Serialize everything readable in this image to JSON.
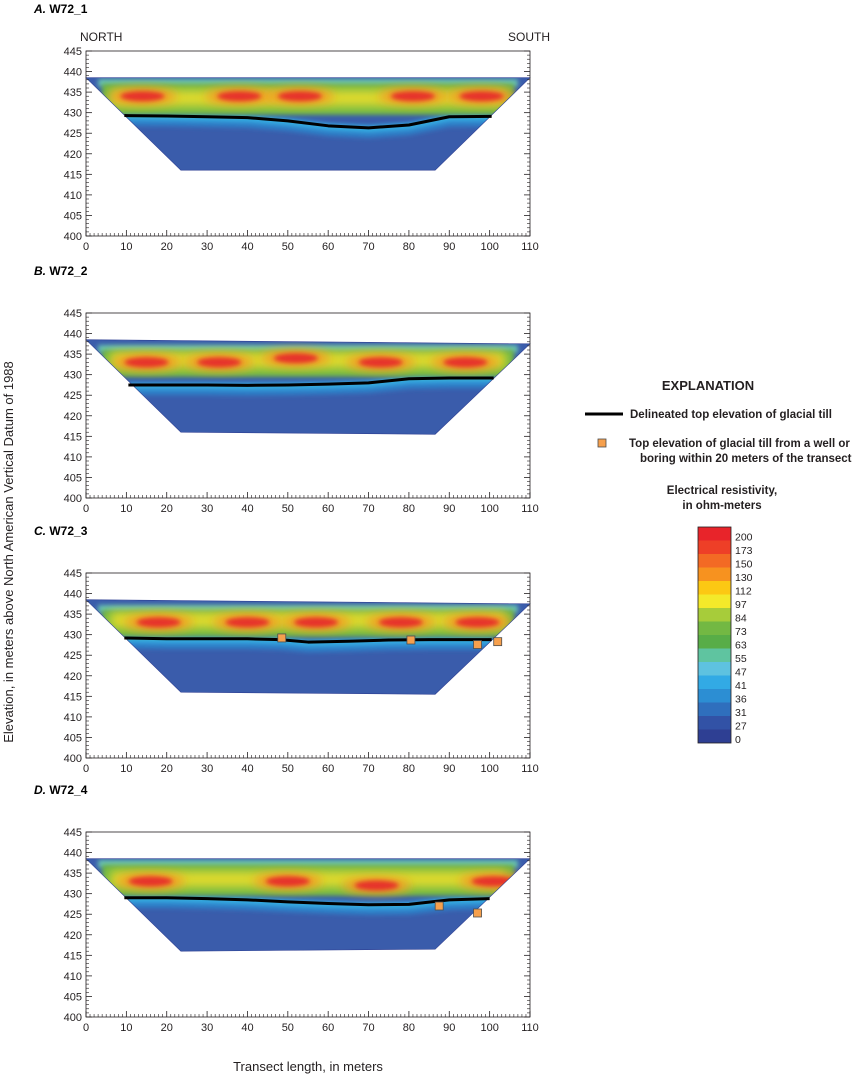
{
  "figure": {
    "x_axis_title": "Transect length, in meters",
    "y_axis_title": "Elevation, in meters above North American Vertical Datum of 1988",
    "north_label": "NORTH",
    "south_label": "SOUTH"
  },
  "explanation": {
    "title": "EXPLANATION",
    "line_label": "Delineated top elevation of glacial till",
    "marker_label_1": "Top elevation of glacial till from a well or",
    "marker_label_2": "boring within 20 meters of the transect",
    "colorbar_title_1": "Electrical resistivity,",
    "colorbar_title_2": "in ohm-meters",
    "colorbar_labels": [
      "200",
      "173",
      "150",
      "130",
      "112",
      "97",
      "84",
      "73",
      "63",
      "55",
      "47",
      "41",
      "36",
      "31",
      "27",
      "0"
    ],
    "colorbar_colors": [
      "#e8242a",
      "#ee3f27",
      "#f36a24",
      "#f7921f",
      "#fcc813",
      "#f3e92a",
      "#a7cc3a",
      "#73b843",
      "#58ad47",
      "#5fc4a0",
      "#5ec2e0",
      "#32aae5",
      "#2c8ed3",
      "#2f6fbd",
      "#3252a6",
      "#2e3f93"
    ]
  },
  "colors": {
    "deep": "#3a5cab",
    "blue": "#2f7fc7",
    "cyan": "#34b3e6",
    "teal": "#69c4b2",
    "green": "#6db845",
    "yellow": "#f4e02a",
    "orange": "#f39a22",
    "red": "#e6312b",
    "till_line": "#000000",
    "marker": "#f6a04d",
    "marker_stroke": "#4d4d4d"
  },
  "chart_data": [
    {
      "type": "heatmap",
      "label_letter": "A.",
      "label_name": "W72_1",
      "show_directions": true,
      "xlim": [
        0,
        110
      ],
      "ylim": [
        400,
        445
      ],
      "x_ticks": [
        "0",
        "10",
        "20",
        "30",
        "40",
        "50",
        "60",
        "70",
        "80",
        "90",
        "100",
        "110"
      ],
      "y_ticks": [
        "445",
        "440",
        "435",
        "430",
        "425",
        "420",
        "415",
        "410",
        "405",
        "400"
      ],
      "surface_left": [
        0,
        438.5
      ],
      "surface_right": [
        110,
        438.5
      ],
      "profile_bottom": [
        [
          23.5,
          416
        ],
        [
          86.5,
          416
        ]
      ],
      "till_line": [
        [
          9.5,
          429.3
        ],
        [
          20,
          429.2
        ],
        [
          30,
          429.0
        ],
        [
          40,
          428.8
        ],
        [
          50,
          428.0
        ],
        [
          60,
          426.8
        ],
        [
          70,
          426.3
        ],
        [
          80,
          427.0
        ],
        [
          90,
          429.0
        ],
        [
          100.5,
          429.1
        ]
      ],
      "high_zones": [
        [
          14,
          434
        ],
        [
          38,
          434
        ],
        [
          53,
          434
        ],
        [
          81,
          434
        ],
        [
          98,
          434
        ]
      ],
      "wells": []
    },
    {
      "type": "heatmap",
      "label_letter": "B.",
      "label_name": "W72_2",
      "show_directions": false,
      "xlim": [
        0,
        110
      ],
      "ylim": [
        400,
        445
      ],
      "x_ticks": [
        "0",
        "10",
        "20",
        "30",
        "40",
        "50",
        "60",
        "70",
        "80",
        "90",
        "100",
        "110"
      ],
      "y_ticks": [
        "445",
        "440",
        "435",
        "430",
        "425",
        "420",
        "415",
        "410",
        "405",
        "400"
      ],
      "surface_left": [
        0,
        438.5
      ],
      "surface_right": [
        110,
        437.5
      ],
      "profile_bottom": [
        [
          23.5,
          416
        ],
        [
          86.5,
          415.5
        ]
      ],
      "till_line": [
        [
          10.5,
          427.5
        ],
        [
          20,
          427.5
        ],
        [
          30,
          427.5
        ],
        [
          40,
          427.4
        ],
        [
          50,
          427.5
        ],
        [
          60,
          427.7
        ],
        [
          70,
          428.0
        ],
        [
          80,
          429.0
        ],
        [
          90,
          429.2
        ],
        [
          101,
          429.2
        ]
      ],
      "high_zones": [
        [
          15,
          433
        ],
        [
          33,
          433
        ],
        [
          52,
          434
        ],
        [
          73,
          433
        ],
        [
          94,
          433
        ]
      ],
      "wells": []
    },
    {
      "type": "heatmap",
      "label_letter": "C.",
      "label_name": "W72_3",
      "show_directions": false,
      "xlim": [
        0,
        110
      ],
      "ylim": [
        400,
        445
      ],
      "x_ticks": [
        "0",
        "10",
        "20",
        "30",
        "40",
        "50",
        "60",
        "70",
        "80",
        "90",
        "100",
        "110"
      ],
      "y_ticks": [
        "445",
        "440",
        "435",
        "430",
        "425",
        "420",
        "415",
        "410",
        "405",
        "400"
      ],
      "surface_left": [
        0,
        438.5
      ],
      "surface_right": [
        110,
        437.5
      ],
      "profile_bottom": [
        [
          23.5,
          416
        ],
        [
          86.5,
          415.5
        ]
      ],
      "till_line": [
        [
          9.5,
          429.2
        ],
        [
          20,
          429.0
        ],
        [
          30,
          429.0
        ],
        [
          40,
          429.0
        ],
        [
          48,
          428.8
        ],
        [
          55,
          428.2
        ],
        [
          65,
          428.4
        ],
        [
          75,
          428.7
        ],
        [
          85,
          428.8
        ],
        [
          100.5,
          428.8
        ]
      ],
      "high_zones": [
        [
          18,
          433
        ],
        [
          40,
          433
        ],
        [
          57,
          433
        ],
        [
          78,
          433
        ],
        [
          97,
          433
        ]
      ],
      "wells": [
        [
          48.5,
          429.2
        ],
        [
          80.5,
          428.7
        ],
        [
          97,
          427.6
        ],
        [
          102,
          428.3
        ]
      ]
    },
    {
      "type": "heatmap",
      "label_letter": "D.",
      "label_name": "W72_4",
      "show_directions": false,
      "xlim": [
        0,
        110
      ],
      "ylim": [
        400,
        445
      ],
      "x_ticks": [
        "0",
        "10",
        "20",
        "30",
        "40",
        "50",
        "60",
        "70",
        "80",
        "90",
        "100",
        "110"
      ],
      "y_ticks": [
        "445",
        "440",
        "435",
        "430",
        "425",
        "420",
        "415",
        "410",
        "405",
        "400"
      ],
      "surface_left": [
        0,
        438.5
      ],
      "surface_right": [
        110,
        438.5
      ],
      "profile_bottom": [
        [
          23.5,
          416
        ],
        [
          86.5,
          416.5
        ]
      ],
      "till_line": [
        [
          9.5,
          429.0
        ],
        [
          20,
          429.0
        ],
        [
          30,
          428.8
        ],
        [
          40,
          428.5
        ],
        [
          50,
          428.0
        ],
        [
          60,
          427.6
        ],
        [
          70,
          427.3
        ],
        [
          80,
          427.4
        ],
        [
          90,
          428.5
        ],
        [
          100,
          428.8
        ]
      ],
      "high_zones": [
        [
          16,
          433
        ],
        [
          50,
          433
        ],
        [
          72,
          432
        ],
        [
          101,
          433
        ]
      ],
      "wells": [
        [
          87.5,
          427.0
        ],
        [
          97,
          425.3
        ]
      ]
    }
  ]
}
